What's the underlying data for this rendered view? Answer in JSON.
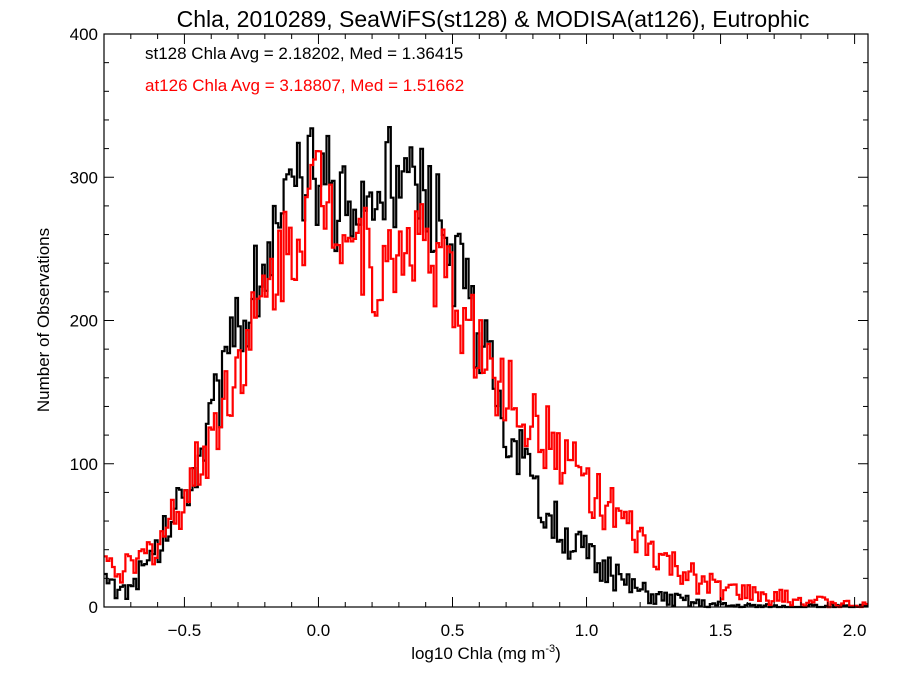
{
  "chart_data": {
    "type": "histogram-step",
    "title": "Chla, 2010289, SeaWiFS(st128) & MODISA(at126), Eutrophic",
    "xlabel": "log10 Chla (mg m",
    "xlabel_sup": "-3",
    "xlabel_close": ")",
    "ylabel": "Number of Observations",
    "xlim": [
      -0.8,
      2.05
    ],
    "ylim": [
      0,
      400
    ],
    "x_ticks": [
      {
        "value": -0.5,
        "label": "−0.5"
      },
      {
        "value": 0.0,
        "label": "0.0"
      },
      {
        "value": 0.5,
        "label": "0.5"
      },
      {
        "value": 1.0,
        "label": "1.0"
      },
      {
        "value": 1.5,
        "label": "1.5"
      },
      {
        "value": 2.0,
        "label": "2.0"
      }
    ],
    "y_ticks": [
      {
        "value": 0,
        "label": "0"
      },
      {
        "value": 100,
        "label": "100"
      },
      {
        "value": 200,
        "label": "200"
      },
      {
        "value": 300,
        "label": "300"
      },
      {
        "value": 400,
        "label": "400"
      }
    ],
    "annotations": [
      {
        "text": "st128 Chla Avg = 2.18202, Med = 1.36415",
        "color": "#000000"
      },
      {
        "text": "at126 Chla Avg = 3.18807, Med = 1.51662",
        "color": "#ff0000"
      }
    ],
    "series": [
      {
        "id": "st128",
        "color": "#000000",
        "points": [
          [
            -0.8,
            22
          ],
          [
            -0.75,
            12
          ],
          [
            -0.7,
            14
          ],
          [
            -0.65,
            25
          ],
          [
            -0.6,
            40
          ],
          [
            -0.55,
            62
          ],
          [
            -0.5,
            85
          ],
          [
            -0.45,
            105
          ],
          [
            -0.4,
            135
          ],
          [
            -0.35,
            160
          ],
          [
            -0.3,
            190
          ],
          [
            -0.25,
            220
          ],
          [
            -0.2,
            245
          ],
          [
            -0.15,
            262
          ],
          [
            -0.1,
            285
          ],
          [
            -0.05,
            300
          ],
          [
            0.0,
            302
          ],
          [
            0.05,
            290
          ],
          [
            0.1,
            270
          ],
          [
            0.15,
            278
          ],
          [
            0.2,
            285
          ],
          [
            0.25,
            300
          ],
          [
            0.3,
            296
          ],
          [
            0.35,
            290
          ],
          [
            0.4,
            280
          ],
          [
            0.45,
            265
          ],
          [
            0.5,
            240
          ],
          [
            0.55,
            215
          ],
          [
            0.6,
            190
          ],
          [
            0.65,
            160
          ],
          [
            0.7,
            132
          ],
          [
            0.75,
            105
          ],
          [
            0.8,
            80
          ],
          [
            0.85,
            68
          ],
          [
            0.9,
            55
          ],
          [
            0.95,
            46
          ],
          [
            1.0,
            38
          ],
          [
            1.05,
            28
          ],
          [
            1.1,
            22
          ],
          [
            1.15,
            16
          ],
          [
            1.2,
            12
          ],
          [
            1.25,
            8
          ],
          [
            1.3,
            6
          ],
          [
            1.35,
            5
          ],
          [
            1.4,
            3
          ],
          [
            1.45,
            2
          ],
          [
            1.5,
            1.5
          ],
          [
            1.55,
            1
          ],
          [
            1.6,
            1
          ],
          [
            1.65,
            0.5
          ],
          [
            1.7,
            0
          ],
          [
            1.8,
            0
          ],
          [
            1.9,
            0
          ],
          [
            2.05,
            0
          ]
        ]
      },
      {
        "id": "at126",
        "color": "#ff0000",
        "points": [
          [
            -0.8,
            28
          ],
          [
            -0.75,
            30
          ],
          [
            -0.7,
            25
          ],
          [
            -0.65,
            35
          ],
          [
            -0.6,
            45
          ],
          [
            -0.55,
            60
          ],
          [
            -0.5,
            78
          ],
          [
            -0.45,
            97
          ],
          [
            -0.4,
            118
          ],
          [
            -0.35,
            145
          ],
          [
            -0.3,
            170
          ],
          [
            -0.25,
            190
          ],
          [
            -0.2,
            215
          ],
          [
            -0.15,
            240
          ],
          [
            -0.1,
            255
          ],
          [
            -0.05,
            275
          ],
          [
            0.0,
            295
          ],
          [
            0.05,
            280
          ],
          [
            0.1,
            270
          ],
          [
            0.15,
            255
          ],
          [
            0.2,
            235
          ],
          [
            0.25,
            230
          ],
          [
            0.3,
            248
          ],
          [
            0.35,
            260
          ],
          [
            0.4,
            252
          ],
          [
            0.45,
            240
          ],
          [
            0.5,
            220
          ],
          [
            0.55,
            200
          ],
          [
            0.6,
            180
          ],
          [
            0.65,
            165
          ],
          [
            0.7,
            152
          ],
          [
            0.75,
            138
          ],
          [
            0.8,
            125
          ],
          [
            0.85,
            118
          ],
          [
            0.9,
            108
          ],
          [
            0.95,
            98
          ],
          [
            1.0,
            88
          ],
          [
            1.05,
            76
          ],
          [
            1.1,
            65
          ],
          [
            1.15,
            55
          ],
          [
            1.2,
            45
          ],
          [
            1.25,
            38
          ],
          [
            1.3,
            30
          ],
          [
            1.35,
            25
          ],
          [
            1.4,
            20
          ],
          [
            1.45,
            16
          ],
          [
            1.5,
            13
          ],
          [
            1.55,
            11
          ],
          [
            1.6,
            9
          ],
          [
            1.65,
            8
          ],
          [
            1.7,
            7
          ],
          [
            1.75,
            6
          ],
          [
            1.8,
            5
          ],
          [
            1.85,
            4
          ],
          [
            1.9,
            3
          ],
          [
            1.95,
            2
          ],
          [
            2.0,
            1.5
          ],
          [
            2.05,
            1
          ]
        ]
      }
    ]
  }
}
